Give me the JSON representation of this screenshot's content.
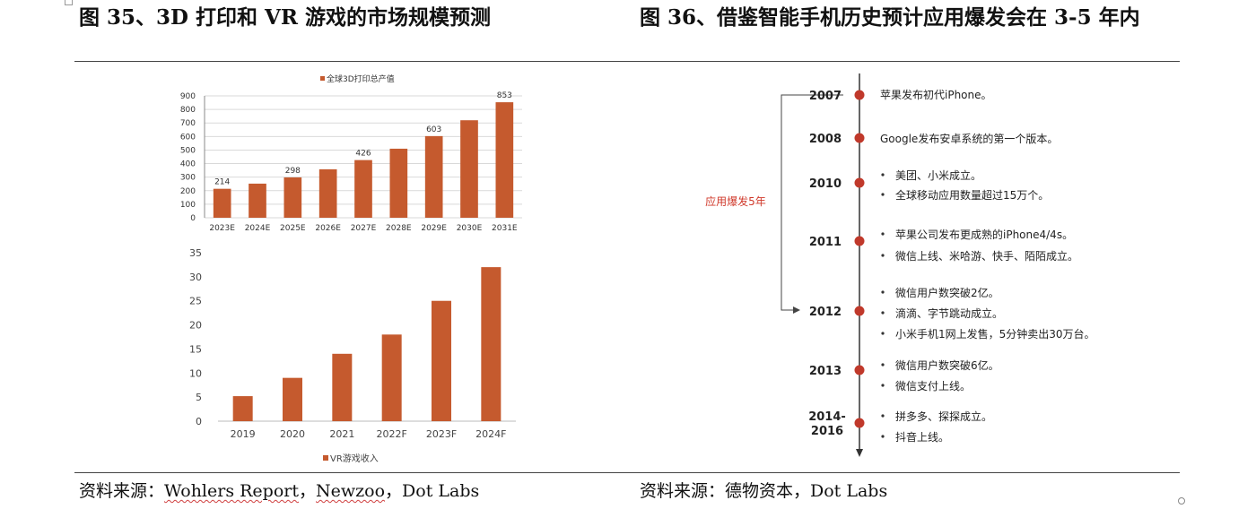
{
  "figure_left": {
    "title": "图 35、3D 打印和 VR 游戏的市场规模预测",
    "source_prefix": "资料来源：",
    "source_parts": [
      "Wohlers Report",
      "，",
      "Newzoo",
      "，Dot Labs"
    ]
  },
  "figure_right": {
    "title": "图 36、借鉴智能手机历史预计应用爆发会在 3-5 年内",
    "source": "资料来源：德物资本，Dot Labs"
  },
  "colors": {
    "bar": "#C55A2E",
    "timeline_dot": "#C0392B",
    "bracket_label": "#D0392B"
  },
  "chart_data": [
    {
      "type": "bar",
      "title": "",
      "legend": "全球3D打印总产值",
      "legend_position": "top",
      "categories": [
        "2023E",
        "2024E",
        "2025E",
        "2026E",
        "2027E",
        "2028E",
        "2029E",
        "2030E",
        "2031E"
      ],
      "values": [
        214,
        252,
        298,
        358,
        426,
        510,
        603,
        720,
        853
      ],
      "data_labels": [
        "214",
        "",
        "298",
        "",
        "426",
        "",
        "603",
        "",
        "853"
      ],
      "yticks": [
        "0",
        "100",
        "200",
        "300",
        "400",
        "500",
        "600",
        "700",
        "800",
        "900"
      ],
      "ylim": [
        0,
        900
      ],
      "xlabel": "",
      "ylabel": ""
    },
    {
      "type": "bar",
      "title": "",
      "legend": "VR游戏收入",
      "legend_position": "bottom",
      "categories": [
        "2019",
        "2020",
        "2021",
        "2022F",
        "2023F",
        "2024F"
      ],
      "values": [
        5.2,
        9.0,
        14.0,
        18.0,
        25.0,
        32.0
      ],
      "yticks": [
        "0",
        "5",
        "10",
        "15",
        "20",
        "25",
        "30",
        "35"
      ],
      "ylim": [
        0,
        35
      ],
      "xlabel": "",
      "ylabel": ""
    }
  ],
  "timeline": {
    "bracket_label": "应用爆发5年",
    "events": [
      {
        "year": "2007",
        "items": [
          "苹果发布初代iPhone。"
        ],
        "bullet": false
      },
      {
        "year": "2008",
        "items": [
          "Google发布安卓系统的第一个版本。"
        ],
        "bullet": false
      },
      {
        "year": "2010",
        "items": [
          "美团、小米成立。",
          "全球移动应用数量超过15万个。"
        ],
        "bullet": true
      },
      {
        "year": "2011",
        "items": [
          "苹果公司发布更成熟的iPhone4/4s。",
          "微信上线、米哈游、快手、陌陌成立。"
        ],
        "bullet": true
      },
      {
        "year": "2012",
        "items": [
          "微信用户数突破2亿。",
          "滴滴、字节跳动成立。",
          "小米手机1网上发售，5分钟卖出30万台。"
        ],
        "bullet": true
      },
      {
        "year": "2013",
        "items": [
          "微信用户数突破6亿。",
          "微信支付上线。"
        ],
        "bullet": true
      },
      {
        "year": "2014-2016",
        "year_lines": [
          "2014-",
          "2016"
        ],
        "items": [
          "拼多多、探探成立。",
          "抖音上线。"
        ],
        "bullet": true
      }
    ]
  }
}
